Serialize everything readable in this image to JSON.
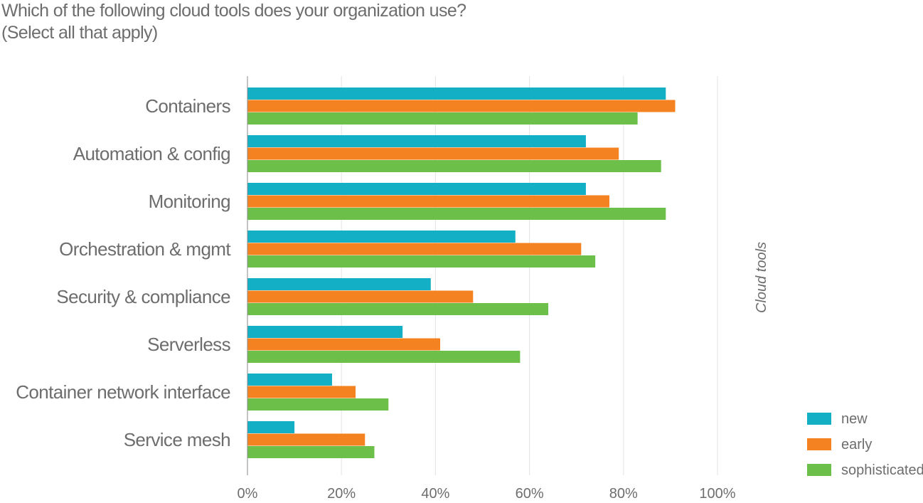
{
  "chart_data": {
    "type": "bar",
    "orientation": "horizontal",
    "title": "Which of the following cloud tools does your organization use?",
    "subtitle": "(Select all that apply)",
    "categories": [
      "Containers",
      "Automation & config",
      "Monitoring",
      "Orchestration & mgmt",
      "Security & compliance",
      "Serverless",
      "Container network interface",
      "Service mesh"
    ],
    "series": [
      {
        "name": "new",
        "color": "#13afc5",
        "values": [
          89,
          72,
          72,
          57,
          39,
          33,
          18,
          10
        ]
      },
      {
        "name": "early",
        "color": "#f58220",
        "values": [
          91,
          79,
          77,
          71,
          48,
          41,
          23,
          25
        ]
      },
      {
        "name": "sophisticated",
        "color": "#6cc04a",
        "values": [
          83,
          88,
          89,
          74,
          64,
          58,
          30,
          27
        ]
      }
    ],
    "xlim": [
      0,
      100
    ],
    "xticks": [
      0,
      20,
      40,
      60,
      80,
      100
    ],
    "xtick_labels": [
      "0%",
      "20%",
      "40%",
      "60%",
      "80%",
      "100%"
    ],
    "side_label": "Cloud tools",
    "grid": true,
    "legend_position": "bottom-right"
  }
}
